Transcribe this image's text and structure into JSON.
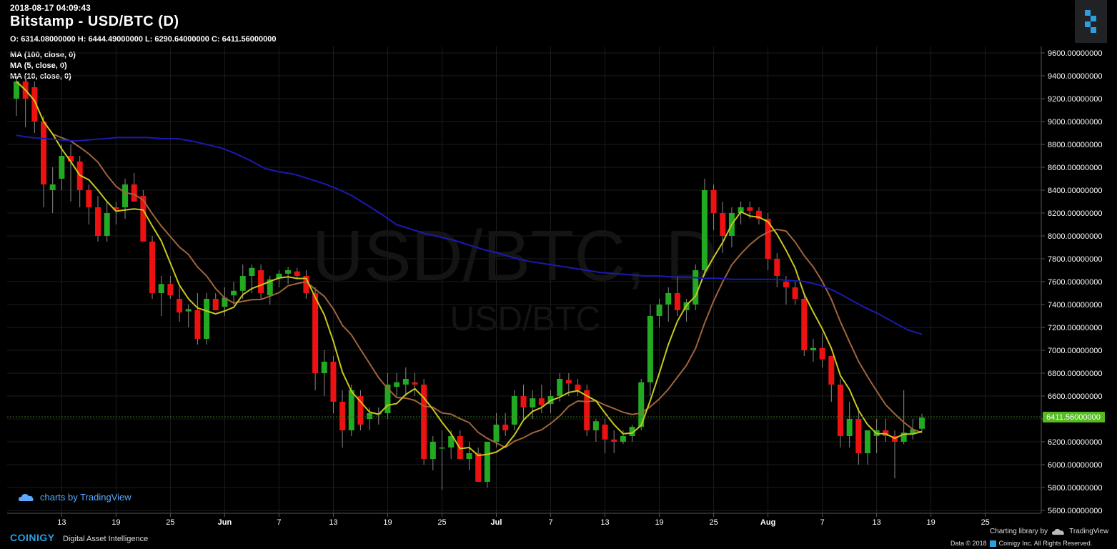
{
  "header": {
    "timestamp": "2018-08-17 04:09:43",
    "title": "Bitstamp - USD/BTC (D)",
    "ohlc": "O: 6314.08000000 H: 6444.49000000 L: 6290.64000000 C: 6411.56000000"
  },
  "indicators": [
    {
      "label": "MA (100, close, 0)",
      "color": "#1a1ab4"
    },
    {
      "label": "MA (5, close, 0)",
      "color": "#c8c81e"
    },
    {
      "label": "MA (10, close, 0)",
      "color": "#a0643c"
    }
  ],
  "watermark": {
    "main": "USD/BTC, D",
    "sub": "USD/BTC"
  },
  "last_price_label": "6411.56000000",
  "branding": {
    "tv_credit": "charts by TradingView",
    "footer_brand": "COINIGY",
    "footer_tag": "Digital Asset Intelligence",
    "charting_lib": "Charting library by",
    "tradingview": "TradingView",
    "copyright_left": "Data © 2018",
    "copyright_right": "Coinigy Inc. All Rights Reserved."
  },
  "colors": {
    "up": "#22aa22",
    "down": "#ee1111",
    "grid": "#1c1c1c",
    "last_price": "#55bb22"
  },
  "chart_data": {
    "type": "candlestick",
    "title": "Bitstamp - USD/BTC (D)",
    "ylim": [
      5600,
      9700
    ],
    "y_ticks": [
      "9600.00000000",
      "9400.00000000",
      "9200.00000000",
      "9000.00000000",
      "8800.00000000",
      "8600.00000000",
      "8400.00000000",
      "8200.00000000",
      "8000.00000000",
      "7800.00000000",
      "7600.00000000",
      "7400.00000000",
      "7200.00000000",
      "7000.00000000",
      "6800.00000000",
      "6600.00000000",
      "6400.00000000",
      "6200.00000000",
      "6000.00000000",
      "5800.00000000",
      "5600.00000000"
    ],
    "x_ticks": [
      "13",
      "19",
      "25",
      "Jun",
      "7",
      "13",
      "19",
      "25",
      "Jul",
      "7",
      "13",
      "19",
      "25",
      "Aug",
      "7",
      "13",
      "19",
      "25"
    ],
    "last_price": 6411.56,
    "series": [
      {
        "name": "USD/BTC",
        "ohlc": [
          [
            9200,
            9400,
            9050,
            9350
          ],
          [
            9350,
            9400,
            8950,
            9200
          ],
          [
            9300,
            9350,
            8900,
            9000
          ],
          [
            9000,
            9050,
            8250,
            8450
          ],
          [
            8400,
            8600,
            8200,
            8450
          ],
          [
            8500,
            8800,
            8400,
            8700
          ],
          [
            8700,
            8800,
            8300,
            8650
          ],
          [
            8650,
            8700,
            8250,
            8400
          ],
          [
            8400,
            8450,
            8100,
            8250
          ],
          [
            8250,
            8350,
            7950,
            8000
          ],
          [
            8000,
            8300,
            7950,
            8200
          ],
          [
            8250,
            8300,
            8100,
            8230
          ],
          [
            8250,
            8500,
            8150,
            8450
          ],
          [
            8450,
            8550,
            8300,
            8300
          ],
          [
            8350,
            8400,
            7950,
            7950
          ],
          [
            7950,
            8000,
            7450,
            7500
          ],
          [
            7500,
            7650,
            7300,
            7580
          ],
          [
            7580,
            7650,
            7450,
            7480
          ],
          [
            7450,
            7550,
            7250,
            7330
          ],
          [
            7340,
            7400,
            7200,
            7360
          ],
          [
            7350,
            7500,
            7050,
            7100
          ],
          [
            7100,
            7500,
            7050,
            7450
          ],
          [
            7450,
            7500,
            7350,
            7350
          ],
          [
            7380,
            7550,
            7300,
            7460
          ],
          [
            7480,
            7600,
            7400,
            7520
          ],
          [
            7520,
            7750,
            7450,
            7650
          ],
          [
            7650,
            7750,
            7500,
            7720
          ],
          [
            7700,
            7750,
            7450,
            7500
          ],
          [
            7480,
            7650,
            7400,
            7620
          ],
          [
            7630,
            7700,
            7550,
            7670
          ],
          [
            7670,
            7730,
            7580,
            7700
          ],
          [
            7690,
            7720,
            7620,
            7650
          ],
          [
            7650,
            7700,
            7450,
            7500
          ],
          [
            7500,
            7550,
            6650,
            6800
          ],
          [
            6800,
            7000,
            6600,
            6900
          ],
          [
            6900,
            6950,
            6450,
            6550
          ],
          [
            6550,
            6650,
            6150,
            6300
          ],
          [
            6300,
            6700,
            6250,
            6650
          ],
          [
            6600,
            6650,
            6300,
            6350
          ],
          [
            6400,
            6500,
            6300,
            6450
          ],
          [
            6450,
            6500,
            6350,
            6450
          ],
          [
            6450,
            6800,
            6400,
            6700
          ],
          [
            6680,
            6800,
            6600,
            6720
          ],
          [
            6700,
            6850,
            6600,
            6750
          ],
          [
            6720,
            6800,
            6600,
            6700
          ],
          [
            6700,
            6750,
            6000,
            6050
          ],
          [
            6050,
            6250,
            5950,
            6200
          ],
          [
            6150,
            6300,
            5780,
            6150
          ],
          [
            6150,
            6300,
            6050,
            6250
          ],
          [
            6250,
            6300,
            6050,
            6050
          ],
          [
            6050,
            6200,
            5950,
            6100
          ],
          [
            6100,
            6150,
            5850,
            5850
          ],
          [
            5850,
            6200,
            5800,
            6200
          ],
          [
            6200,
            6450,
            6150,
            6350
          ],
          [
            6350,
            6450,
            6250,
            6300
          ],
          [
            6350,
            6650,
            6300,
            6600
          ],
          [
            6600,
            6700,
            6400,
            6500
          ],
          [
            6500,
            6650,
            6400,
            6580
          ],
          [
            6580,
            6700,
            6450,
            6520
          ],
          [
            6530,
            6650,
            6450,
            6600
          ],
          [
            6600,
            6800,
            6550,
            6750
          ],
          [
            6740,
            6800,
            6600,
            6710
          ],
          [
            6700,
            6750,
            6600,
            6650
          ],
          [
            6650,
            6700,
            6250,
            6300
          ],
          [
            6300,
            6400,
            6200,
            6380
          ],
          [
            6350,
            6400,
            6100,
            6220
          ],
          [
            6220,
            6300,
            6100,
            6200
          ],
          [
            6200,
            6300,
            6180,
            6250
          ],
          [
            6250,
            6350,
            6200,
            6330
          ],
          [
            6330,
            6750,
            6300,
            6720
          ],
          [
            6720,
            7400,
            6600,
            7300
          ],
          [
            7300,
            7450,
            7200,
            7400
          ],
          [
            7400,
            7550,
            7250,
            7500
          ],
          [
            7500,
            7650,
            7300,
            7350
          ],
          [
            7350,
            7450,
            7250,
            7420
          ],
          [
            7400,
            7750,
            7350,
            7700
          ],
          [
            7700,
            8500,
            7650,
            8400
          ],
          [
            8400,
            8450,
            8050,
            8200
          ],
          [
            8200,
            8300,
            7850,
            8000
          ],
          [
            8000,
            8250,
            7900,
            8200
          ],
          [
            8200,
            8300,
            8100,
            8250
          ],
          [
            8250,
            8300,
            8150,
            8220
          ],
          [
            8220,
            8250,
            8100,
            8150
          ],
          [
            8150,
            8200,
            7700,
            7800
          ],
          [
            7800,
            7850,
            7550,
            7650
          ],
          [
            7600,
            7650,
            7400,
            7550
          ],
          [
            7550,
            7600,
            7400,
            7450
          ],
          [
            7450,
            7500,
            6950,
            7000
          ],
          [
            7000,
            7100,
            6900,
            7020
          ],
          [
            7020,
            7150,
            6850,
            6920
          ],
          [
            6950,
            6950,
            6550,
            6700
          ],
          [
            6700,
            6750,
            6150,
            6250
          ],
          [
            6250,
            6550,
            6150,
            6400
          ],
          [
            6400,
            6500,
            6000,
            6100
          ],
          [
            6100,
            6300,
            6000,
            6300
          ],
          [
            6250,
            6400,
            6100,
            6300
          ],
          [
            6300,
            6400,
            6200,
            6250
          ],
          [
            6250,
            6300,
            5880,
            6200
          ],
          [
            6200,
            6650,
            6180,
            6280
          ],
          [
            6270,
            6400,
            6220,
            6310
          ],
          [
            6314.08,
            6444.49,
            6290.64,
            6411.56
          ]
        ]
      }
    ],
    "ma_100": [
      8880,
      8860,
      8850,
      8840,
      8830,
      8840,
      8850,
      8860,
      8860,
      8860,
      8850,
      8850,
      8830,
      8800,
      8770,
      8720,
      8660,
      8590,
      8560,
      8540,
      8500,
      8460,
      8410,
      8350,
      8270,
      8190,
      8100,
      8060,
      8020,
      7990,
      7960,
      7920,
      7880,
      7850,
      7810,
      7780,
      7760,
      7740,
      7720,
      7700,
      7680,
      7670,
      7660,
      7650,
      7650,
      7640,
      7640,
      7630,
      7630,
      7620,
      7620,
      7620,
      7620,
      7610,
      7600,
      7570,
      7520,
      7450,
      7380,
      7320,
      7250,
      7180,
      7140
    ],
    "ma_100_span": [
      0,
      62
    ]
  }
}
